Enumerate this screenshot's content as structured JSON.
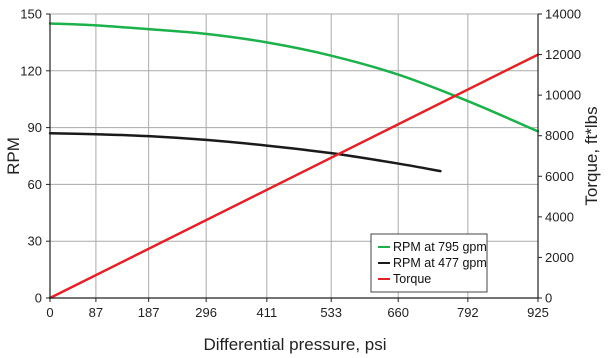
{
  "chart_data": {
    "type": "line",
    "title": "",
    "xlabel": "Differential pressure, psi",
    "ylabel_left": "RPM",
    "ylabel_right": "Torque, ft*lbs",
    "x_ticks": [
      "0",
      "87",
      "187",
      "296",
      "411",
      "533",
      "660",
      "792",
      "925"
    ],
    "x_tick_values": [
      0,
      87,
      187,
      296,
      411,
      533,
      660,
      792,
      925
    ],
    "xlim": [
      0,
      925
    ],
    "ylim_left": [
      0,
      150
    ],
    "yticks_left": [
      "0",
      "30",
      "60",
      "90",
      "120",
      "150"
    ],
    "ylim_right": [
      0,
      14000
    ],
    "yticks_right": [
      "0",
      "2000",
      "4000",
      "6000",
      "8000",
      "10000",
      "12000",
      "14000"
    ],
    "legend_position": "lower-right inside plot",
    "series": [
      {
        "name": "RPM at 795 gpm",
        "axis": "left",
        "color": "#1db14b",
        "x": [
          0,
          87,
          187,
          296,
          411,
          533,
          660,
          792,
          925
        ],
        "y": [
          145,
          144,
          142,
          139.5,
          135,
          128,
          118,
          104,
          88
        ]
      },
      {
        "name": "RPM at 477 gpm",
        "axis": "left",
        "color": "#1a1a1a",
        "x": [
          0,
          87,
          187,
          296,
          411,
          533,
          660,
          740
        ],
        "y": [
          87,
          86.5,
          85.5,
          83.5,
          80.5,
          76.5,
          71,
          67
        ]
      },
      {
        "name": "Torque",
        "axis": "right",
        "color": "#e32227",
        "x": [
          0,
          925
        ],
        "y": [
          0,
          12000
        ]
      }
    ]
  }
}
